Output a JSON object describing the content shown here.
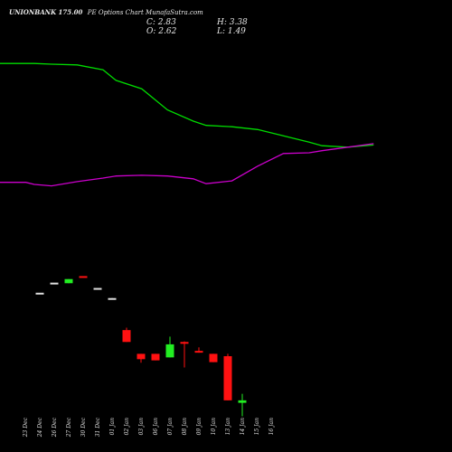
{
  "header": {
    "symbol": "UNIONBANK 175.00",
    "subtitle": "PE Options  Chart MunafaSutra.com",
    "close_label": "C: 2.83",
    "high_label": "H: 3.38",
    "open_label": "O: 2.62",
    "low_label": "L: 1.49"
  },
  "colors": {
    "background": "#000000",
    "up": "#22ee22",
    "down": "#ff1111",
    "flat": "#dddddd",
    "upper_line": "#00dd00",
    "lower_line": "#cc00cc"
  },
  "chart_data": {
    "type": "candlestick",
    "title": "UNIONBANK 175.00 PE Options  Chart MunafaSutra.com",
    "dates": [
      "23 Dec",
      "24 Dec",
      "26 Dec",
      "27 Dec",
      "30 Dec",
      "31 Dec",
      "01 Jan",
      "02 Jan",
      "03 Jan",
      "06 Jan",
      "07 Jan",
      "08 Jan",
      "09 Jan",
      "10 Jan",
      "13 Jan",
      "14 Jan",
      "15 Jan",
      "16 Jan"
    ],
    "candles": [
      {
        "date": "23 Dec",
        "open": null,
        "high": null,
        "low": null,
        "close": null
      },
      {
        "date": "24 Dec",
        "open": 11.9,
        "high": 11.9,
        "low": 11.9,
        "close": 11.9
      },
      {
        "date": "26 Dec",
        "open": 12.75,
        "high": 12.75,
        "low": 12.75,
        "close": 12.75
      },
      {
        "date": "27 Dec",
        "open": 12.7,
        "high": 13.05,
        "low": 12.7,
        "close": 13.05
      },
      {
        "date": "30 Dec",
        "open": 13.3,
        "high": 13.3,
        "low": 13.3,
        "close": 13.3
      },
      {
        "date": "31 Dec",
        "open": 12.3,
        "high": 12.3,
        "low": 12.3,
        "close": 12.3
      },
      {
        "date": "01 Jan",
        "open": 11.45,
        "high": 11.45,
        "low": 11.35,
        "close": 11.45
      },
      {
        "date": "02 Jan",
        "open": 8.75,
        "high": 8.95,
        "low": 7.75,
        "close": 7.75
      },
      {
        "date": "03 Jan",
        "open": 6.75,
        "high": 6.75,
        "low": 6.0,
        "close": 6.3
      },
      {
        "date": "06 Jan",
        "open": 6.75,
        "high": 6.75,
        "low": 6.2,
        "close": 6.2
      },
      {
        "date": "07 Jan",
        "open": 6.45,
        "high": 8.2,
        "low": 6.45,
        "close": 7.55
      },
      {
        "date": "08 Jan",
        "open": 7.75,
        "high": 7.8,
        "low": 5.6,
        "close": 7.6
      },
      {
        "date": "09 Jan",
        "open": 7.0,
        "high": 7.3,
        "low": 6.85,
        "close": 6.85
      },
      {
        "date": "10 Jan",
        "open": 6.75,
        "high": 6.75,
        "low": 6.05,
        "close": 6.05
      },
      {
        "date": "13 Jan",
        "open": 6.55,
        "high": 6.75,
        "low": 2.83,
        "close": 2.83
      },
      {
        "date": "14 Jan",
        "open": 2.62,
        "high": 3.38,
        "low": 1.49,
        "close": 2.83
      },
      {
        "date": "15 Jan",
        "open": null,
        "high": null,
        "low": null,
        "close": null
      },
      {
        "date": "16 Jan",
        "open": null,
        "high": null,
        "low": null,
        "close": null
      }
    ],
    "upper_band": [
      97.4,
      97.4,
      97.4,
      97.3,
      97.2,
      96.5,
      95.0,
      93.8,
      90.8,
      89.2,
      88.6,
      88.4,
      88.0,
      87.1,
      86.2,
      85.7,
      85.5,
      85.8
    ],
    "lower_band": [
      80.5,
      80.5,
      80.2,
      80.0,
      80.6,
      81.1,
      81.4,
      81.5,
      81.4,
      81.0,
      80.3,
      80.7,
      82.8,
      84.6,
      84.7,
      85.0,
      85.5,
      86.0
    ],
    "band_x": [
      0,
      1,
      1.33,
      2,
      3,
      4,
      4.5,
      5.5,
      6.5,
      7.5,
      8,
      9,
      10,
      11,
      12,
      12.5,
      13.5,
      14.5
    ],
    "band_ylim": [
      73,
      100
    ],
    "price_ylim": [
      0,
      16
    ],
    "grid": false,
    "legend": "none"
  }
}
